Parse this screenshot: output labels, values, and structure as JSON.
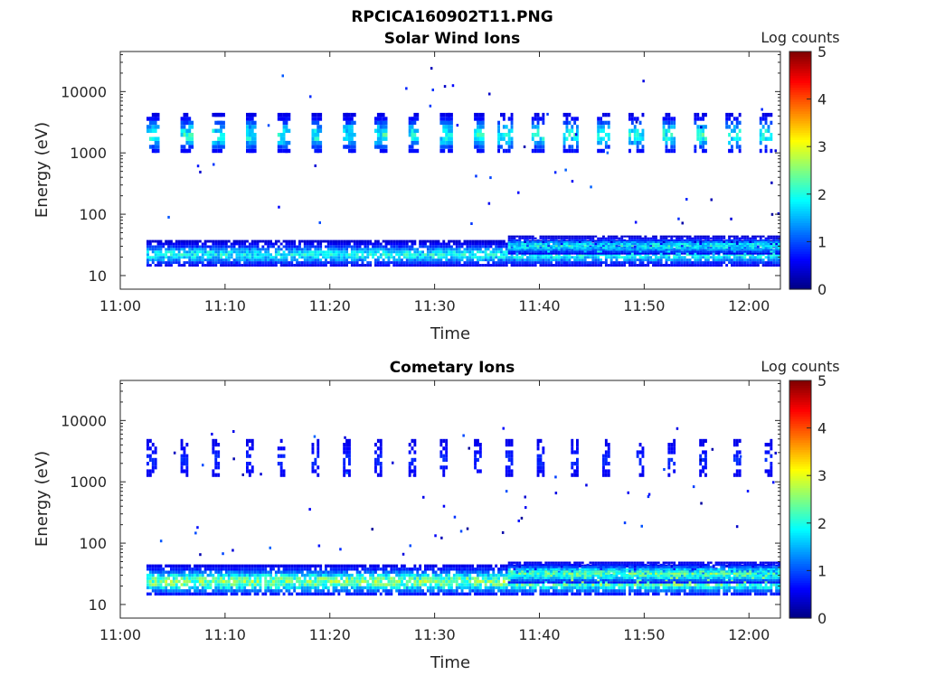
{
  "figure": {
    "suptitle": "RPCICA160902T11.PNG"
  },
  "chart_data": [
    {
      "type": "heatmap",
      "title": "Solar Wind Ions",
      "xlabel": "Time",
      "ylabel": "Energy (eV)",
      "xticks": [
        "11:00",
        "11:10",
        "11:20",
        "11:30",
        "11:40",
        "11:50",
        "12:00"
      ],
      "xlim": [
        "11:00",
        "12:03"
      ],
      "yscale": "log",
      "yticks": [
        "10",
        "100",
        "1000",
        "10000"
      ],
      "ylim": [
        6,
        45000
      ],
      "colorbar": {
        "label": "Log counts",
        "ticks": [
          "0",
          "1",
          "2",
          "3",
          "4",
          "5"
        ],
        "range": [
          0,
          5
        ],
        "colormap": "jet"
      },
      "features": [
        {
          "type": "band",
          "t0": 2.5,
          "t1": 63,
          "elo": 14,
          "ehi": 38,
          "peak": 2.3,
          "cmin": 0.3
        },
        {
          "type": "band",
          "t0": 37,
          "t1": 63,
          "elo": 22,
          "ehi": 45,
          "peak": 2.3,
          "cmin": 0.3
        },
        {
          "type": "band",
          "t0": 2.5,
          "t1": 36,
          "elo": 1000,
          "ehi": 4500,
          "peak": 2.4,
          "cmin": 0.4,
          "pulse": 3.1,
          "duty": 0.3,
          "col": 2
        },
        {
          "type": "band",
          "t0": 36,
          "t1": 63,
          "elo": 1000,
          "ehi": 4500,
          "peak": 2.4,
          "cmin": 0.4,
          "pulse": 3.1,
          "duty": 0.45,
          "col": 1
        },
        {
          "type": "speck",
          "t0": 3,
          "t1": 63,
          "elo": 60,
          "ehi": 25000,
          "n": 45,
          "vmax": 1
        }
      ]
    },
    {
      "type": "heatmap",
      "title": "Cometary Ions",
      "xlabel": "Time",
      "ylabel": "Energy (eV)",
      "xticks": [
        "11:00",
        "11:10",
        "11:20",
        "11:30",
        "11:40",
        "11:50",
        "12:00"
      ],
      "xlim": [
        "11:00",
        "12:03"
      ],
      "yscale": "log",
      "yticks": [
        "10",
        "100",
        "1000",
        "10000"
      ],
      "ylim": [
        6,
        45000
      ],
      "colorbar": {
        "label": "Log counts",
        "ticks": [
          "0",
          "1",
          "2",
          "3",
          "4",
          "5"
        ],
        "range": [
          0,
          5
        ],
        "colormap": "jet"
      },
      "features": [
        {
          "type": "band",
          "t0": 2.5,
          "t1": 63,
          "elo": 14,
          "ehi": 45,
          "peak": 3.0,
          "cmin": 0.4
        },
        {
          "type": "band",
          "t0": 37,
          "t1": 63,
          "elo": 22,
          "ehi": 50,
          "peak": 2.8,
          "cmin": 0.4
        },
        {
          "type": "band",
          "t0": 2.5,
          "t1": 63,
          "elo": 1200,
          "ehi": 5000,
          "peak": 0.9,
          "cmin": 0.5,
          "pulse": 3.1,
          "duty": 0.25,
          "col": 1
        },
        {
          "type": "speck",
          "t0": 3,
          "t1": 63,
          "elo": 60,
          "ehi": 8000,
          "n": 60,
          "vmax": 1
        }
      ]
    }
  ]
}
